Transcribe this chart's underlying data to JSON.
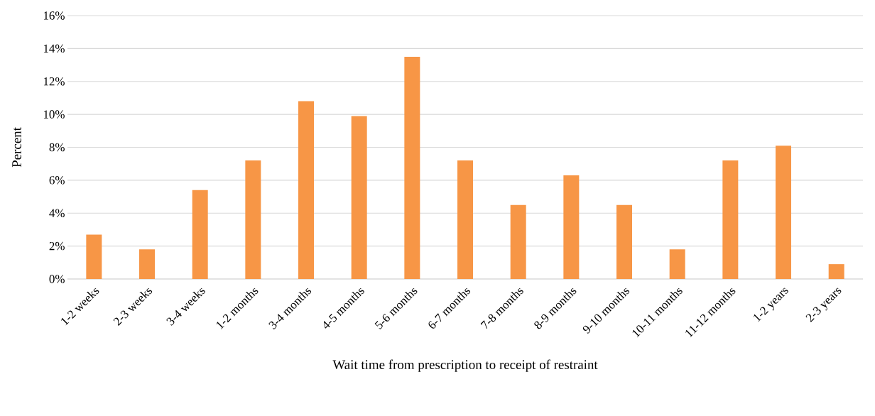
{
  "chart_data": {
    "type": "bar",
    "xlabel": "Wait time from prescription to receipt of restraint",
    "ylabel": "Percent",
    "categories": [
      "1-2 weeks",
      "2-3 weeks",
      "3-4 weeks",
      "1-2 months",
      "3-4 months",
      "4-5 months",
      "5-6 months",
      "6-7 months",
      "7-8 months",
      "8-9 months",
      "9-10 months",
      "10-11 months",
      "11-12 months",
      "1-2 years",
      "2-3 years"
    ],
    "values": [
      2.7,
      1.8,
      5.4,
      7.2,
      10.8,
      9.9,
      13.5,
      7.2,
      4.5,
      6.3,
      4.5,
      1.8,
      7.2,
      8.1,
      0.9
    ],
    "color": "#f79646",
    "ylim": [
      0,
      16
    ],
    "yticks": [
      {
        "value": 0,
        "label": "0%"
      },
      {
        "value": 2,
        "label": "2%"
      },
      {
        "value": 4,
        "label": "4%"
      },
      {
        "value": 6,
        "label": "6%"
      },
      {
        "value": 8,
        "label": "8%"
      },
      {
        "value": 10,
        "label": "10%"
      },
      {
        "value": 12,
        "label": "12%"
      },
      {
        "value": 14,
        "label": "14%"
      },
      {
        "value": 16,
        "label": "16%"
      }
    ],
    "grid": "y"
  }
}
